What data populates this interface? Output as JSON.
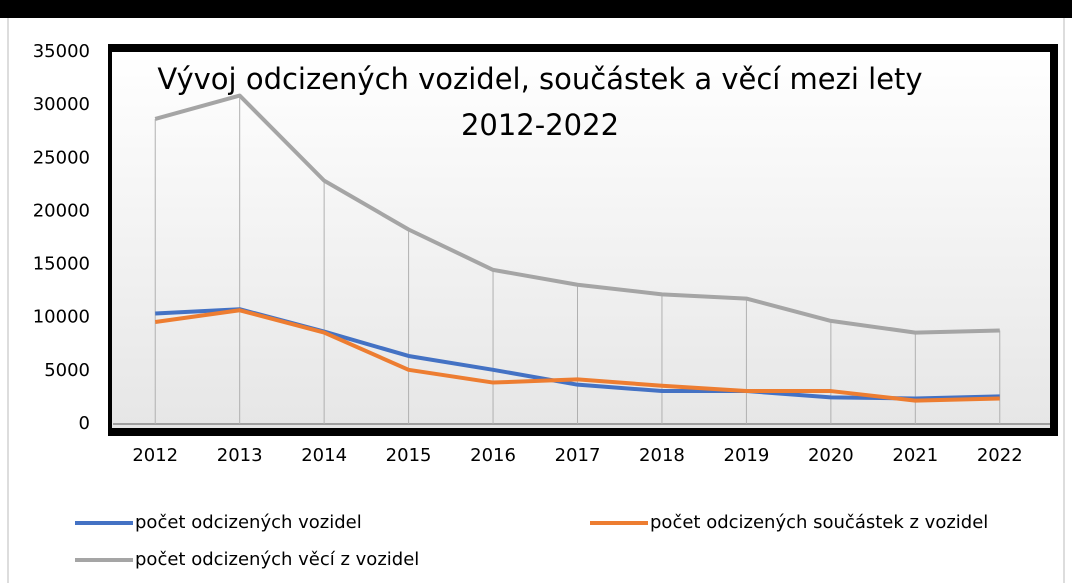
{
  "chart_data": {
    "type": "line",
    "title": "Vývoj odcizených vozidel, součástek a věcí mezi lety 2012-2022",
    "categories": [
      "2012",
      "2013",
      "2014",
      "2015",
      "2016",
      "2017",
      "2018",
      "2019",
      "2020",
      "2021",
      "2022"
    ],
    "series": [
      {
        "name": "počet odcizených vozidel",
        "color": "#4472c4",
        "values": [
          10400,
          10800,
          8700,
          6400,
          5100,
          3700,
          3100,
          3100,
          2500,
          2400,
          2600
        ]
      },
      {
        "name": "počet odcizených součástek z vozidel",
        "color": "#ed7d31",
        "values": [
          9600,
          10700,
          8600,
          5100,
          3900,
          4200,
          3600,
          3100,
          3100,
          2200,
          2400
        ]
      },
      {
        "name": "počet odcizených věcí z vozidel",
        "color": "#a5a5a5",
        "values": [
          28700,
          30900,
          22900,
          18300,
          14500,
          13100,
          12200,
          11800,
          9700,
          8600,
          8800
        ]
      }
    ],
    "ylim": [
      0,
      35000
    ],
    "yticks": [
      0,
      5000,
      10000,
      15000,
      20000,
      25000,
      30000,
      35000
    ],
    "drop_lines": true
  }
}
